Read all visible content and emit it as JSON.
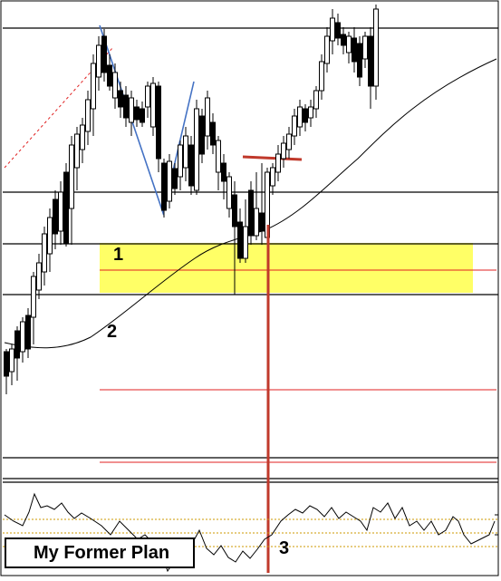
{
  "annotations": {
    "label_1": "1",
    "label_2": "2",
    "label_3": "3",
    "plan_title": "My Former Plan"
  },
  "colors": {
    "background": "#ffffff",
    "candle": "#000000",
    "zone_fill": "#ffff66",
    "level_red": "#e02020",
    "trend_blue": "#4472c4",
    "oscillator_dotted": "#cc9900"
  },
  "chart_data": {
    "type": "candlestick",
    "panels": [
      "price",
      "oscillator"
    ],
    "grid": false,
    "legend": "none"
  }
}
